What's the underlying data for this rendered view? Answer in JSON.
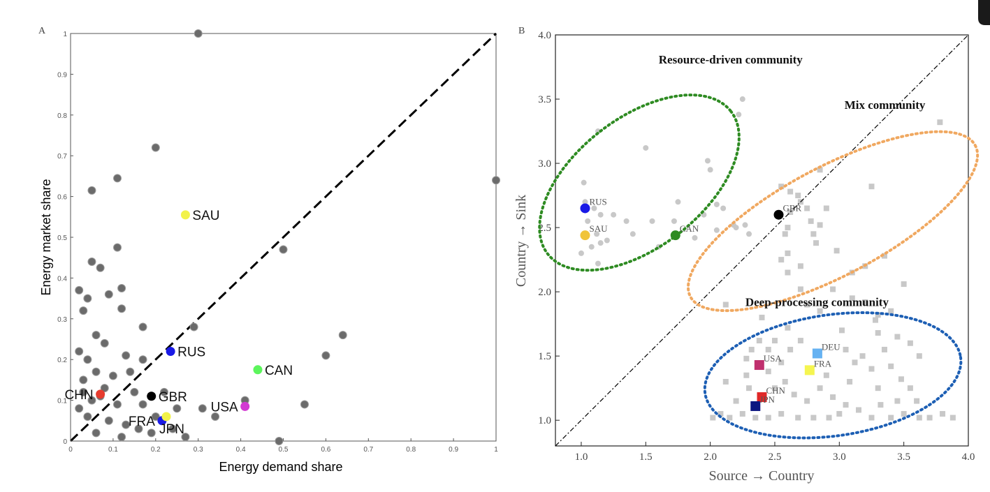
{
  "chart_data": [
    {
      "panel_label": "A",
      "type": "scatter",
      "xlabel": "Energy demand share",
      "ylabel": "Energy market share",
      "xlim": [
        0,
        1
      ],
      "ylim": [
        0,
        1
      ],
      "xticks": [
        "0",
        "0.1",
        "0.2",
        "0.3",
        "0.4",
        "0.5",
        "0.6",
        "0.7",
        "0.8",
        "0.9",
        "1"
      ],
      "yticks": [
        "0",
        "0.1",
        "0.2",
        "0.3",
        "0.4",
        "0.5",
        "0.6",
        "0.7",
        "0.8",
        "0.9",
        "1"
      ],
      "diagonal": {
        "style": "dashed",
        "color": "#000000"
      },
      "background_points": [
        [
          0.3,
          1.0
        ],
        [
          0.2,
          0.72
        ],
        [
          0.05,
          0.615
        ],
        [
          0.11,
          0.645
        ],
        [
          1.0,
          0.64
        ],
        [
          0.05,
          0.44
        ],
        [
          0.07,
          0.425
        ],
        [
          0.11,
          0.475
        ],
        [
          0.5,
          0.47
        ],
        [
          0.09,
          0.36
        ],
        [
          0.12,
          0.375
        ],
        [
          0.02,
          0.37
        ],
        [
          0.04,
          0.35
        ],
        [
          0.03,
          0.32
        ],
        [
          0.12,
          0.325
        ],
        [
          0.17,
          0.28
        ],
        [
          0.29,
          0.28
        ],
        [
          0.06,
          0.26
        ],
        [
          0.08,
          0.24
        ],
        [
          0.13,
          0.21
        ],
        [
          0.02,
          0.22
        ],
        [
          0.04,
          0.2
        ],
        [
          0.6,
          0.21
        ],
        [
          0.64,
          0.26
        ],
        [
          0.17,
          0.2
        ],
        [
          0.14,
          0.17
        ],
        [
          0.06,
          0.17
        ],
        [
          0.1,
          0.16
        ],
        [
          0.03,
          0.15
        ],
        [
          0.08,
          0.13
        ],
        [
          0.15,
          0.12
        ],
        [
          0.05,
          0.1
        ],
        [
          0.11,
          0.09
        ],
        [
          0.17,
          0.09
        ],
        [
          0.25,
          0.08
        ],
        [
          0.31,
          0.08
        ],
        [
          0.41,
          0.1
        ],
        [
          0.55,
          0.09
        ],
        [
          0.34,
          0.06
        ],
        [
          0.02,
          0.08
        ],
        [
          0.04,
          0.06
        ],
        [
          0.09,
          0.05
        ],
        [
          0.13,
          0.04
        ],
        [
          0.16,
          0.03
        ],
        [
          0.19,
          0.02
        ],
        [
          0.24,
          0.03
        ],
        [
          0.27,
          0.01
        ],
        [
          0.49,
          0.0
        ],
        [
          0.06,
          0.02
        ],
        [
          0.12,
          0.01
        ],
        [
          0.03,
          0.12
        ],
        [
          0.07,
          0.11
        ],
        [
          0.2,
          0.06
        ],
        [
          0.22,
          0.12
        ]
      ],
      "countries": [
        {
          "label": "SAU",
          "x": 0.27,
          "y": 0.555,
          "color": "#f2f24a",
          "label_side": "right"
        },
        {
          "label": "RUS",
          "x": 0.235,
          "y": 0.22,
          "color": "#1a1ae6",
          "label_side": "right"
        },
        {
          "label": "CAN",
          "x": 0.44,
          "y": 0.175,
          "color": "#5cf55c",
          "label_side": "right"
        },
        {
          "label": "CHN",
          "x": 0.07,
          "y": 0.115,
          "color": "#e63b2e",
          "label_side": "left"
        },
        {
          "label": "GBR",
          "x": 0.19,
          "y": 0.11,
          "color": "#000000",
          "label_side": "right"
        },
        {
          "label": "USA",
          "x": 0.41,
          "y": 0.085,
          "color": "#d23ad2",
          "label_side": "left"
        },
        {
          "label": "FRA",
          "x": 0.215,
          "y": 0.05,
          "color": "#1a1ae6",
          "label_side": "left"
        },
        {
          "label": "JPN",
          "x": 0.225,
          "y": 0.06,
          "color": "#f2f24a",
          "label_side": "below"
        }
      ]
    },
    {
      "panel_label": "B",
      "type": "scatter",
      "xlabel": "Source → Country",
      "ylabel": "Country → Sink",
      "xlim": [
        0.8,
        4.0
      ],
      "ylim": [
        0.8,
        4.0
      ],
      "xticks": [
        "1.0",
        "1.5",
        "2.0",
        "2.5",
        "3.0",
        "3.5",
        "4.0"
      ],
      "yticks": [
        "1.0",
        "1.5",
        "2.0",
        "2.5",
        "3.0",
        "3.5",
        "4.0"
      ],
      "diagonal": {
        "style": "dash-dot",
        "color": "#000000"
      },
      "communities": [
        {
          "name": "Resource-driven community",
          "color": "#2e8b22",
          "cx": 1.45,
          "cy": 2.85,
          "rx": 0.9,
          "ry": 0.5,
          "angle": 38
        },
        {
          "name": "Mix community",
          "color": "#f0a860",
          "cx": 2.95,
          "cy": 2.55,
          "rx": 1.25,
          "ry": 0.42,
          "angle": 28
        },
        {
          "name": "Deep-processing community",
          "color": "#1d5fb4",
          "cx": 2.95,
          "cy": 1.35,
          "rx": 1.0,
          "ry": 0.47,
          "angle": 8
        }
      ],
      "source_points": [
        [
          1.02,
          2.85
        ],
        [
          1.1,
          2.65
        ],
        [
          1.15,
          2.6
        ],
        [
          1.05,
          2.55
        ],
        [
          1.12,
          2.45
        ],
        [
          1.2,
          2.4
        ],
        [
          1.08,
          2.35
        ],
        [
          1.15,
          2.38
        ],
        [
          1.25,
          2.6
        ],
        [
          1.35,
          2.55
        ],
        [
          1.4,
          2.45
        ],
        [
          1.5,
          3.12
        ],
        [
          1.55,
          2.55
        ],
        [
          1.6,
          2.35
        ],
        [
          1.72,
          2.55
        ],
        [
          1.75,
          2.7
        ],
        [
          1.0,
          2.3
        ],
        [
          1.03,
          2.7
        ],
        [
          1.13,
          2.22
        ],
        [
          1.98,
          3.02
        ],
        [
          2.0,
          2.95
        ],
        [
          1.95,
          2.6
        ],
        [
          2.05,
          2.68
        ],
        [
          2.1,
          2.65
        ],
        [
          2.18,
          2.52
        ],
        [
          2.22,
          3.38
        ],
        [
          2.25,
          3.5
        ],
        [
          2.2,
          2.5
        ],
        [
          2.27,
          2.52
        ],
        [
          2.05,
          2.48
        ],
        [
          1.88,
          2.42
        ],
        [
          2.3,
          2.45
        ],
        [
          1.13,
          3.25
        ]
      ],
      "sink_points": [
        [
          2.55,
          2.82
        ],
        [
          2.62,
          2.78
        ],
        [
          2.68,
          2.75
        ],
        [
          2.7,
          2.7
        ],
        [
          2.75,
          2.65
        ],
        [
          2.78,
          2.55
        ],
        [
          2.85,
          2.52
        ],
        [
          2.62,
          2.62
        ],
        [
          2.6,
          2.5
        ],
        [
          2.58,
          2.45
        ],
        [
          2.6,
          2.3
        ],
        [
          2.6,
          2.15
        ],
        [
          2.55,
          2.25
        ],
        [
          2.8,
          2.45
        ],
        [
          2.82,
          2.38
        ],
        [
          2.85,
          2.95
        ],
        [
          2.9,
          2.65
        ],
        [
          3.25,
          2.82
        ],
        [
          3.78,
          3.32
        ],
        [
          2.7,
          2.2
        ],
        [
          3.35,
          2.28
        ],
        [
          3.5,
          2.06
        ],
        [
          3.1,
          2.15
        ],
        [
          3.2,
          1.92
        ],
        [
          3.3,
          1.82
        ],
        [
          3.28,
          1.78
        ],
        [
          3.4,
          1.85
        ],
        [
          3.45,
          1.65
        ],
        [
          3.3,
          1.68
        ],
        [
          3.18,
          1.5
        ],
        [
          3.02,
          1.7
        ],
        [
          3.05,
          1.55
        ],
        [
          3.12,
          1.45
        ],
        [
          3.25,
          1.4
        ],
        [
          3.35,
          1.55
        ],
        [
          3.4,
          1.42
        ],
        [
          3.55,
          1.6
        ],
        [
          3.62,
          1.5
        ],
        [
          3.48,
          1.32
        ],
        [
          3.55,
          1.25
        ],
        [
          3.6,
          1.15
        ],
        [
          3.5,
          1.05
        ],
        [
          3.62,
          1.02
        ],
        [
          3.7,
          1.02
        ],
        [
          3.8,
          1.05
        ],
        [
          3.88,
          1.02
        ],
        [
          3.4,
          1.02
        ],
        [
          3.25,
          1.02
        ],
        [
          3.15,
          1.08
        ],
        [
          3.0,
          1.05
        ],
        [
          2.95,
          1.18
        ],
        [
          2.85,
          1.25
        ],
        [
          2.75,
          1.15
        ],
        [
          2.65,
          1.2
        ],
        [
          2.58,
          1.3
        ],
        [
          2.5,
          1.25
        ],
        [
          2.45,
          1.02
        ],
        [
          2.35,
          1.02
        ],
        [
          2.25,
          1.05
        ],
        [
          2.15,
          1.02
        ],
        [
          2.08,
          1.05
        ],
        [
          2.02,
          1.02
        ],
        [
          2.2,
          1.15
        ],
        [
          2.3,
          1.25
        ],
        [
          2.45,
          1.38
        ],
        [
          2.55,
          1.45
        ],
        [
          2.62,
          1.55
        ],
        [
          2.7,
          1.62
        ],
        [
          2.45,
          1.55
        ],
        [
          2.38,
          1.62
        ],
        [
          2.32,
          1.55
        ],
        [
          2.28,
          1.48
        ],
        [
          2.55,
          1.05
        ],
        [
          2.68,
          1.02
        ],
        [
          2.8,
          1.02
        ],
        [
          2.92,
          1.02
        ],
        [
          3.05,
          1.12
        ],
        [
          3.32,
          1.12
        ],
        [
          3.45,
          1.15
        ],
        [
          2.9,
          1.35
        ],
        [
          3.08,
          1.3
        ],
        [
          2.5,
          1.62
        ],
        [
          2.6,
          1.72
        ],
        [
          2.4,
          1.8
        ],
        [
          2.85,
          1.85
        ],
        [
          2.95,
          2.02
        ],
        [
          3.1,
          1.95
        ],
        [
          3.2,
          2.2
        ],
        [
          2.7,
          2.02
        ],
        [
          2.75,
          1.9
        ],
        [
          2.12,
          1.9
        ],
        [
          2.98,
          2.32
        ],
        [
          3.3,
          1.25
        ],
        [
          2.12,
          1.3
        ],
        [
          2.28,
          1.35
        ]
      ],
      "countries": [
        {
          "label": "RUS",
          "x": 1.03,
          "y": 2.65,
          "color": "#1a1ae6",
          "shape": "circle"
        },
        {
          "label": "SAU",
          "x": 1.03,
          "y": 2.44,
          "color": "#f0c43a",
          "shape": "circle"
        },
        {
          "label": "CAN",
          "x": 1.73,
          "y": 2.44,
          "color": "#2e8b22",
          "shape": "circle"
        },
        {
          "label": "GBR",
          "x": 2.53,
          "y": 2.6,
          "color": "#000000",
          "shape": "circle"
        },
        {
          "label": "DEU",
          "x": 2.83,
          "y": 1.52,
          "color": "#66b2f2",
          "shape": "square"
        },
        {
          "label": "FRA",
          "x": 2.77,
          "y": 1.39,
          "color": "#f5f550",
          "shape": "square"
        },
        {
          "label": "USA",
          "x": 2.38,
          "y": 1.43,
          "color": "#c0306e",
          "shape": "square"
        },
        {
          "label": "CHN",
          "x": 2.4,
          "y": 1.18,
          "color": "#e02828",
          "shape": "square"
        },
        {
          "label": "JPN",
          "x": 2.35,
          "y": 1.11,
          "color": "#0c1680",
          "shape": "square"
        }
      ]
    }
  ]
}
